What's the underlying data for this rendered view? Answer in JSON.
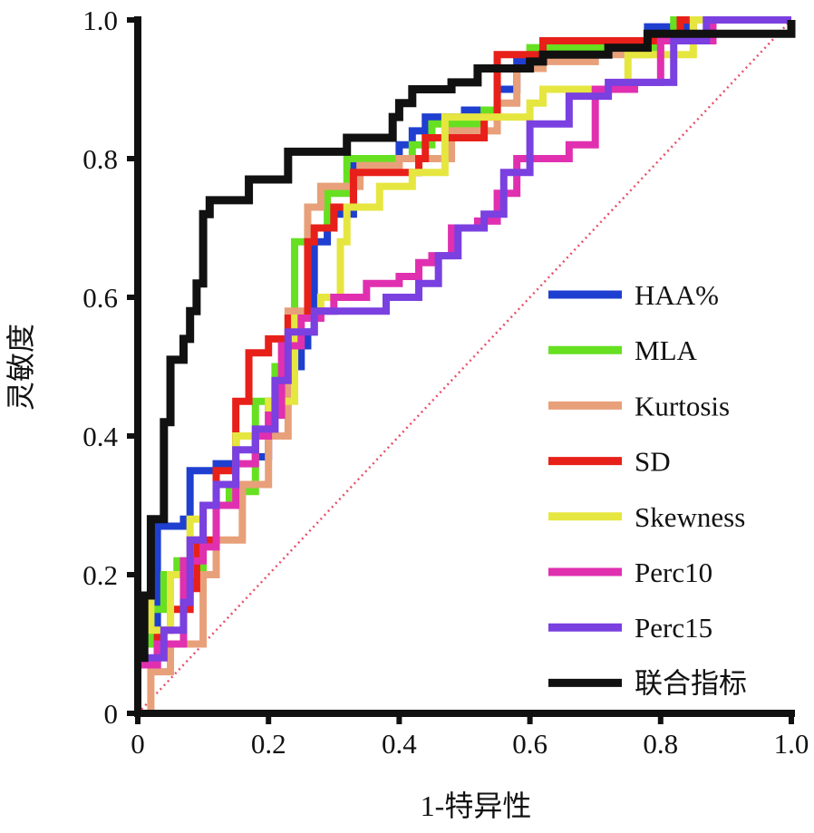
{
  "chart_data": {
    "type": "line",
    "title": "",
    "xlabel": "1-特异性",
    "ylabel": "灵敏度",
    "xlim": [
      0,
      1
    ],
    "ylim": [
      0,
      1
    ],
    "xticks": [
      "0",
      "0.2",
      "0.4",
      "0.6",
      "0.8",
      "1.0"
    ],
    "yticks": [
      "0",
      "0.2",
      "0.4",
      "0.6",
      "0.8",
      "1.0"
    ],
    "grid": false,
    "legend_position": "bottom-right",
    "reference_line": {
      "name": "diagonal",
      "color": "#e8506a",
      "points": [
        [
          0,
          0
        ],
        [
          1,
          1
        ]
      ]
    },
    "series": [
      {
        "name": "HAA%",
        "color": "#1f3fd0",
        "points": [
          [
            0,
            0.1
          ],
          [
            0.03,
            0.1
          ],
          [
            0.03,
            0.27
          ],
          [
            0.07,
            0.28
          ],
          [
            0.08,
            0.35
          ],
          [
            0.12,
            0.36
          ],
          [
            0.15,
            0.4
          ],
          [
            0.18,
            0.37
          ],
          [
            0.2,
            0.45
          ],
          [
            0.22,
            0.5
          ],
          [
            0.25,
            0.53
          ],
          [
            0.26,
            0.55
          ],
          [
            0.27,
            0.68
          ],
          [
            0.29,
            0.7
          ],
          [
            0.3,
            0.72
          ],
          [
            0.33,
            0.8
          ],
          [
            0.4,
            0.82
          ],
          [
            0.42,
            0.84
          ],
          [
            0.44,
            0.86
          ],
          [
            0.5,
            0.87
          ],
          [
            0.55,
            0.9
          ],
          [
            0.58,
            0.94
          ],
          [
            0.62,
            0.97
          ],
          [
            0.77,
            0.97
          ],
          [
            0.78,
            0.99
          ],
          [
            0.85,
            1.0
          ],
          [
            1,
            1
          ]
        ]
      },
      {
        "name": "MLA",
        "color": "#66e020",
        "points": [
          [
            0,
            0.1
          ],
          [
            0.02,
            0.15
          ],
          [
            0.04,
            0.2
          ],
          [
            0.06,
            0.22
          ],
          [
            0.08,
            0.2
          ],
          [
            0.1,
            0.3
          ],
          [
            0.14,
            0.32
          ],
          [
            0.18,
            0.45
          ],
          [
            0.21,
            0.5
          ],
          [
            0.23,
            0.55
          ],
          [
            0.24,
            0.68
          ],
          [
            0.26,
            0.7
          ],
          [
            0.29,
            0.75
          ],
          [
            0.32,
            0.8
          ],
          [
            0.42,
            0.82
          ],
          [
            0.45,
            0.85
          ],
          [
            0.53,
            0.87
          ],
          [
            0.55,
            0.93
          ],
          [
            0.6,
            0.96
          ],
          [
            0.8,
            0.97
          ],
          [
            0.82,
            1.0
          ],
          [
            1,
            1
          ]
        ]
      },
      {
        "name": "Kurtosis",
        "color": "#e8a07a",
        "points": [
          [
            0,
            0
          ],
          [
            0.02,
            0.02
          ],
          [
            0.02,
            0.06
          ],
          [
            0.05,
            0.1
          ],
          [
            0.08,
            0.1
          ],
          [
            0.1,
            0.2
          ],
          [
            0.12,
            0.25
          ],
          [
            0.16,
            0.33
          ],
          [
            0.2,
            0.4
          ],
          [
            0.23,
            0.58
          ],
          [
            0.26,
            0.73
          ],
          [
            0.28,
            0.76
          ],
          [
            0.33,
            0.76
          ],
          [
            0.34,
            0.79
          ],
          [
            0.4,
            0.8
          ],
          [
            0.44,
            0.8
          ],
          [
            0.48,
            0.84
          ],
          [
            0.55,
            0.88
          ],
          [
            0.58,
            0.93
          ],
          [
            0.62,
            0.94
          ],
          [
            0.7,
            0.95
          ],
          [
            0.78,
            0.97
          ],
          [
            0.85,
            1.0
          ],
          [
            1,
            1
          ]
        ]
      },
      {
        "name": "SD",
        "color": "#e8201a",
        "points": [
          [
            0,
            0.07
          ],
          [
            0.03,
            0.12
          ],
          [
            0.05,
            0.15
          ],
          [
            0.07,
            0.15
          ],
          [
            0.08,
            0.18
          ],
          [
            0.09,
            0.25
          ],
          [
            0.12,
            0.35
          ],
          [
            0.15,
            0.45
          ],
          [
            0.17,
            0.52
          ],
          [
            0.2,
            0.54
          ],
          [
            0.23,
            0.57
          ],
          [
            0.26,
            0.68
          ],
          [
            0.27,
            0.7
          ],
          [
            0.3,
            0.73
          ],
          [
            0.33,
            0.78
          ],
          [
            0.43,
            0.8
          ],
          [
            0.44,
            0.83
          ],
          [
            0.53,
            0.86
          ],
          [
            0.55,
            0.95
          ],
          [
            0.62,
            0.97
          ],
          [
            0.8,
            0.97
          ],
          [
            0.83,
            1.0
          ],
          [
            1,
            1
          ]
        ]
      },
      {
        "name": "Skewness",
        "color": "#e6e640",
        "points": [
          [
            0,
            0.17
          ],
          [
            0.02,
            0.12
          ],
          [
            0.05,
            0.2
          ],
          [
            0.08,
            0.28
          ],
          [
            0.1,
            0.3
          ],
          [
            0.15,
            0.4
          ],
          [
            0.2,
            0.45
          ],
          [
            0.24,
            0.57
          ],
          [
            0.28,
            0.6
          ],
          [
            0.31,
            0.68
          ],
          [
            0.32,
            0.73
          ],
          [
            0.37,
            0.76
          ],
          [
            0.42,
            0.78
          ],
          [
            0.47,
            0.86
          ],
          [
            0.6,
            0.88
          ],
          [
            0.62,
            0.9
          ],
          [
            0.7,
            0.9
          ],
          [
            0.75,
            0.95
          ],
          [
            0.85,
            1.0
          ],
          [
            1,
            1
          ]
        ]
      },
      {
        "name": "Perc10",
        "color": "#e030b0",
        "points": [
          [
            0,
            0
          ],
          [
            0,
            0.07
          ],
          [
            0.03,
            0.1
          ],
          [
            0.07,
            0.1
          ],
          [
            0.07,
            0.22
          ],
          [
            0.1,
            0.24
          ],
          [
            0.12,
            0.3
          ],
          [
            0.15,
            0.36
          ],
          [
            0.18,
            0.4
          ],
          [
            0.2,
            0.43
          ],
          [
            0.22,
            0.53
          ],
          [
            0.25,
            0.57
          ],
          [
            0.28,
            0.58
          ],
          [
            0.3,
            0.6
          ],
          [
            0.35,
            0.62
          ],
          [
            0.4,
            0.63
          ],
          [
            0.43,
            0.65
          ],
          [
            0.45,
            0.66
          ],
          [
            0.48,
            0.7
          ],
          [
            0.52,
            0.71
          ],
          [
            0.55,
            0.75
          ],
          [
            0.58,
            0.8
          ],
          [
            0.66,
            0.82
          ],
          [
            0.7,
            0.9
          ],
          [
            0.76,
            0.91
          ],
          [
            0.8,
            0.97
          ],
          [
            0.88,
            1.0
          ],
          [
            1,
            1
          ]
        ]
      },
      {
        "name": "Perc15",
        "color": "#7a40e0",
        "points": [
          [
            0,
            0.08
          ],
          [
            0.04,
            0.12
          ],
          [
            0.07,
            0.16
          ],
          [
            0.08,
            0.25
          ],
          [
            0.1,
            0.3
          ],
          [
            0.12,
            0.33
          ],
          [
            0.15,
            0.38
          ],
          [
            0.18,
            0.41
          ],
          [
            0.21,
            0.48
          ],
          [
            0.23,
            0.55
          ],
          [
            0.27,
            0.58
          ],
          [
            0.33,
            0.58
          ],
          [
            0.38,
            0.6
          ],
          [
            0.43,
            0.62
          ],
          [
            0.46,
            0.66
          ],
          [
            0.49,
            0.7
          ],
          [
            0.53,
            0.72
          ],
          [
            0.56,
            0.78
          ],
          [
            0.6,
            0.85
          ],
          [
            0.66,
            0.89
          ],
          [
            0.72,
            0.91
          ],
          [
            0.77,
            0.91
          ],
          [
            0.82,
            0.97
          ],
          [
            0.87,
            1.0
          ],
          [
            1,
            1
          ]
        ]
      },
      {
        "name": "联合指标",
        "color": "#111111",
        "points": [
          [
            0,
            0.08
          ],
          [
            0.01,
            0.1
          ],
          [
            0.01,
            0.17
          ],
          [
            0.02,
            0.17
          ],
          [
            0.02,
            0.28
          ],
          [
            0.04,
            0.28
          ],
          [
            0.04,
            0.42
          ],
          [
            0.05,
            0.42
          ],
          [
            0.05,
            0.51
          ],
          [
            0.06,
            0.51
          ],
          [
            0.07,
            0.54
          ],
          [
            0.08,
            0.58
          ],
          [
            0.09,
            0.62
          ],
          [
            0.1,
            0.72
          ],
          [
            0.11,
            0.74
          ],
          [
            0.13,
            0.74
          ],
          [
            0.17,
            0.77
          ],
          [
            0.22,
            0.77
          ],
          [
            0.23,
            0.81
          ],
          [
            0.31,
            0.81
          ],
          [
            0.32,
            0.83
          ],
          [
            0.38,
            0.83
          ],
          [
            0.39,
            0.86
          ],
          [
            0.4,
            0.88
          ],
          [
            0.42,
            0.9
          ],
          [
            0.48,
            0.91
          ],
          [
            0.52,
            0.93
          ],
          [
            0.6,
            0.94
          ],
          [
            0.62,
            0.95
          ],
          [
            0.72,
            0.96
          ],
          [
            0.78,
            0.98
          ],
          [
            0.97,
            0.98
          ],
          [
            1,
            1
          ]
        ]
      }
    ]
  }
}
